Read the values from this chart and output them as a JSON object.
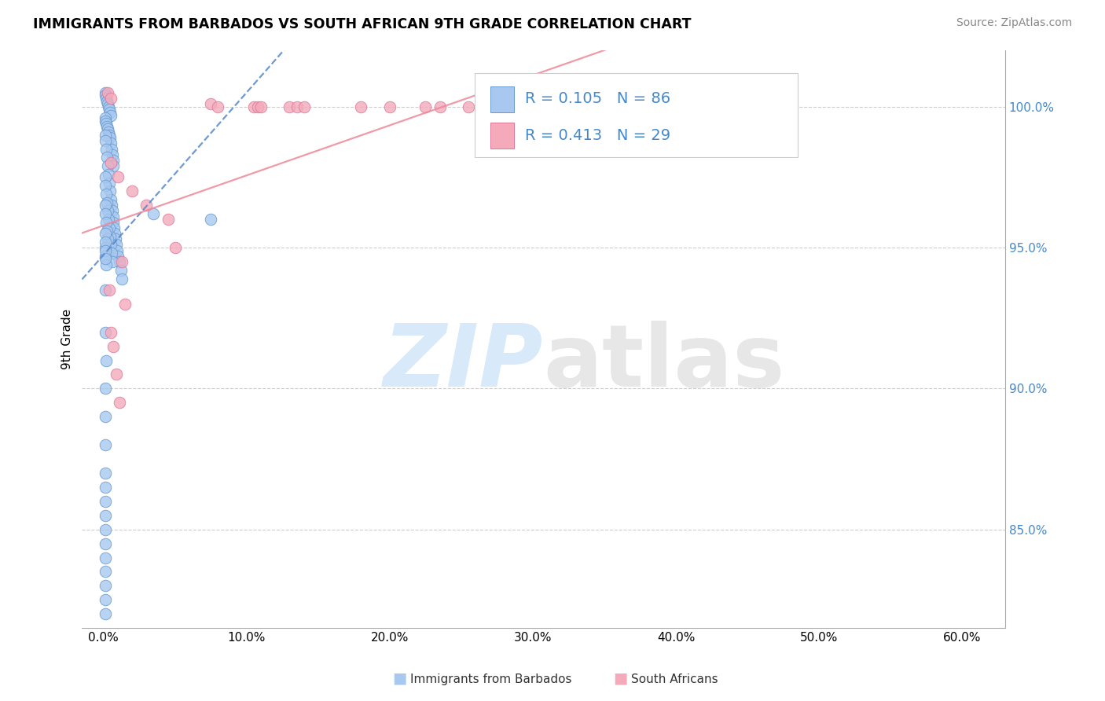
{
  "title": "IMMIGRANTS FROM BARBADOS VS SOUTH AFRICAN 9TH GRADE CORRELATION CHART",
  "source": "Source: ZipAtlas.com",
  "ylabel": "9th Grade",
  "xlim": [
    -1.5,
    63
  ],
  "ylim": [
    81.5,
    102.0
  ],
  "xlabel_vals": [
    0,
    10,
    20,
    30,
    40,
    50,
    60
  ],
  "xlabel_ticks": [
    "0.0%",
    "10.0%",
    "20.0%",
    "30.0%",
    "40.0%",
    "50.0%",
    "60.0%"
  ],
  "ylabel_vals": [
    85,
    90,
    95,
    100
  ],
  "ylabel_ticks": [
    "85.0%",
    "90.0%",
    "95.0%",
    "100.0%"
  ],
  "legend_label1": "Immigrants from Barbados",
  "legend_label2": "South Africans",
  "R1": "0.105",
  "N1": "86",
  "R2": "0.413",
  "N2": "29",
  "blue_face": "#A8C8F0",
  "blue_edge": "#6699CC",
  "pink_face": "#F4AABB",
  "pink_edge": "#DD7799",
  "blue_line": "#5588CC",
  "pink_line": "#EE8899",
  "grid_color": "#CCCCCC",
  "blue_dots_x": [
    0.1,
    0.15,
    0.2,
    0.25,
    0.3,
    0.35,
    0.4,
    0.45,
    0.5,
    0.1,
    0.15,
    0.2,
    0.25,
    0.3,
    0.35,
    0.4,
    0.45,
    0.5,
    0.55,
    0.6,
    0.65,
    0.7,
    0.1,
    0.15,
    0.2,
    0.25,
    0.3,
    0.35,
    0.4,
    0.45,
    0.5,
    0.55,
    0.6,
    0.65,
    0.7,
    0.75,
    0.8,
    0.85,
    0.9,
    0.95,
    1.0,
    1.1,
    1.2,
    1.3,
    0.1,
    0.15,
    0.2,
    0.25,
    0.3,
    0.35,
    0.4,
    0.45,
    0.5,
    0.55,
    0.6,
    0.1,
    0.15,
    0.2,
    0.25,
    0.3,
    0.1,
    0.15,
    0.2,
    0.1,
    0.15,
    0.2,
    0.1,
    0.15,
    0.1,
    0.15,
    0.1,
    0.15,
    0.1,
    0.1,
    0.1,
    3.5,
    0.1,
    0.1,
    7.5,
    0.1,
    0.1,
    0.1,
    0.1,
    0.1,
    0.1,
    0.1
  ],
  "blue_dots_y": [
    100.5,
    100.4,
    100.3,
    100.2,
    100.1,
    100.0,
    99.9,
    99.8,
    99.7,
    99.6,
    99.5,
    99.4,
    99.3,
    99.2,
    99.1,
    99.0,
    98.9,
    98.7,
    98.5,
    98.3,
    98.1,
    97.9,
    99.0,
    98.8,
    98.5,
    98.2,
    97.9,
    97.6,
    97.3,
    97.0,
    96.7,
    96.5,
    96.3,
    96.1,
    95.9,
    95.7,
    95.5,
    95.3,
    95.1,
    94.9,
    94.7,
    94.5,
    94.2,
    93.9,
    97.5,
    97.2,
    96.9,
    96.6,
    96.3,
    96.0,
    95.7,
    95.4,
    95.1,
    94.8,
    94.5,
    96.5,
    96.2,
    95.9,
    95.6,
    95.3,
    95.0,
    94.7,
    94.4,
    93.5,
    92.0,
    91.0,
    90.0,
    89.0,
    88.0,
    87.0,
    86.5,
    86.0,
    85.5,
    85.0,
    84.5,
    96.2,
    84.0,
    83.5,
    96.0,
    83.0,
    82.5,
    82.0,
    95.5,
    95.2,
    94.9,
    94.6
  ],
  "pink_dots_x": [
    0.3,
    0.5,
    7.5,
    8.0,
    10.5,
    10.8,
    11.0,
    13.0,
    13.5,
    14.0,
    18.0,
    20.0,
    22.5,
    23.5,
    25.5,
    0.5,
    1.0,
    2.0,
    3.0,
    4.5,
    5.0,
    47.0,
    0.4,
    0.5,
    0.7,
    0.9,
    1.1,
    1.3,
    1.5
  ],
  "pink_dots_y": [
    100.5,
    100.3,
    100.1,
    100.0,
    100.0,
    100.0,
    100.0,
    100.0,
    100.0,
    100.0,
    100.0,
    100.0,
    100.0,
    100.0,
    100.0,
    98.0,
    97.5,
    97.0,
    96.5,
    96.0,
    95.0,
    100.0,
    93.5,
    92.0,
    91.5,
    90.5,
    89.5,
    94.5,
    93.0
  ]
}
